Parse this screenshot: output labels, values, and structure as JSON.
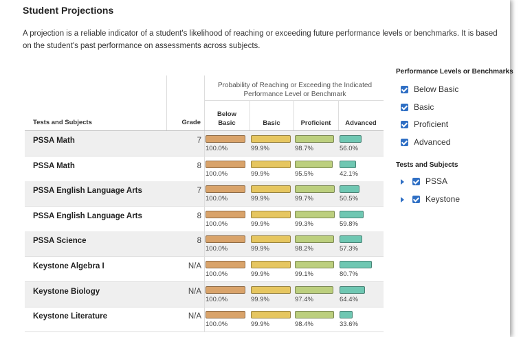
{
  "header": {
    "title": "Student Projections",
    "description": "A projection is a reliable indicator of a student's likelihood of reaching or exceeding future performance levels or benchmarks. It is based on the student's past performance on assessments across subjects."
  },
  "table": {
    "group_header": "Probability of Reaching or Exceeding the Indicated Performance Level or Benchmark",
    "columns": [
      "Tests and Subjects",
      "Grade",
      "Below Basic",
      "Basic",
      "Proficient",
      "Advanced"
    ],
    "colors": [
      "#d9a36a",
      "#e6c660",
      "#bccf7e",
      "#6fc7b2"
    ],
    "rows": [
      {
        "test": "PSSA Math",
        "grade": 7,
        "values": [
          {
            "value": 100,
            "label": "100.0%"
          },
          {
            "value": 99.9,
            "label": "99.9%"
          },
          {
            "value": 98.7,
            "label": "98.7%"
          },
          {
            "value": 56,
            "label": "56.0%"
          }
        ]
      },
      {
        "test": "PSSA Math",
        "grade": 8,
        "values": [
          {
            "value": 100,
            "label": "100.0%"
          },
          {
            "value": 99.9,
            "label": "99.9%"
          },
          {
            "value": 95.5,
            "label": "95.5%"
          },
          {
            "value": 42.1,
            "label": "42.1%"
          }
        ]
      },
      {
        "test": "PSSA English Language Arts",
        "grade": 7,
        "values": [
          {
            "value": 100,
            "label": "100.0%"
          },
          {
            "value": 99.9,
            "label": "99.9%"
          },
          {
            "value": 99.7,
            "label": "99.7%"
          },
          {
            "value": 50.5,
            "label": "50.5%"
          }
        ]
      },
      {
        "test": "PSSA English Language Arts",
        "grade": 8,
        "values": [
          {
            "value": 100,
            "label": "100.0%"
          },
          {
            "value": 99.9,
            "label": "99.9%"
          },
          {
            "value": 99.3,
            "label": "99.3%"
          },
          {
            "value": 59.8,
            "label": "59.8%"
          }
        ]
      },
      {
        "test": "PSSA Science",
        "grade": 8,
        "values": [
          {
            "value": 100,
            "label": "100.0%"
          },
          {
            "value": 99.9,
            "label": "99.9%"
          },
          {
            "value": 98.2,
            "label": "98.2%"
          },
          {
            "value": 57.3,
            "label": "57.3%"
          }
        ]
      },
      {
        "test": "Keystone Algebra I",
        "grade": "N/A",
        "values": [
          {
            "value": 100,
            "label": "100.0%"
          },
          {
            "value": 99.9,
            "label": "99.9%"
          },
          {
            "value": 99.1,
            "label": "99.1%"
          },
          {
            "value": 80.7,
            "label": "80.7%"
          }
        ]
      },
      {
        "test": "Keystone Biology",
        "grade": "N/A",
        "values": [
          {
            "value": 100,
            "label": "100.0%"
          },
          {
            "value": 99.9,
            "label": "99.9%"
          },
          {
            "value": 97.4,
            "label": "97.4%"
          },
          {
            "value": 64.4,
            "label": "64.4%"
          }
        ]
      },
      {
        "test": "Keystone Literature",
        "grade": "N/A",
        "values": [
          {
            "value": 100,
            "label": "100.0%"
          },
          {
            "value": 99.9,
            "label": "99.9%"
          },
          {
            "value": 98.4,
            "label": "98.4%"
          },
          {
            "value": 33.6,
            "label": "33.6%"
          }
        ]
      }
    ]
  },
  "filters": {
    "title": "Performance Levels or Benchmarks",
    "items": [
      "Below Basic",
      "Basic",
      "Proficient",
      "Advanced"
    ]
  },
  "tree": {
    "title": "Tests and Subjects",
    "items": [
      "PSSA",
      "Keystone"
    ]
  }
}
